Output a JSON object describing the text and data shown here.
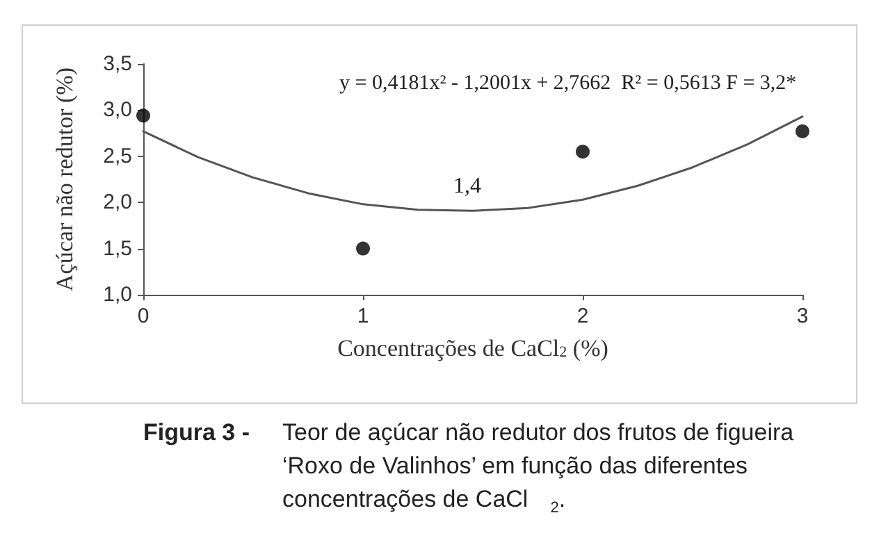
{
  "chart_data": {
    "type": "scatter",
    "xlabel": "Concentrações de CaCl$_{2}$ (%)",
    "ylabel": "Açúcar não redutor (%)",
    "annotations": [
      "y = 0,4181x² - 1,2001x + 2,7662  R² = 0,5613 F = 3,2*",
      "1,4",
      "Figura 3 -",
      "Teor de açúcar não redutor dos frutos de figueira ‘Roxo de Valinhos’ em função das diferentes concentrações de CaCl$_{2}$."
    ],
    "xlim": [
      0,
      3
    ],
    "xticks": [
      0,
      1,
      2,
      3
    ],
    "ylim": [
      1,
      3.5
    ],
    "yticks": [
      {
        "value": 1,
        "label": "1,0"
      },
      {
        "value": 1.5,
        "label": "1,5"
      },
      {
        "value": 2,
        "label": "2,0"
      },
      {
        "value": 2.5,
        "label": "2,5"
      },
      {
        "value": 3,
        "label": "3,0"
      },
      {
        "value": 3.5,
        "label": "3,5"
      }
    ],
    "grid": false,
    "marker": "circle",
    "series": [
      {
        "color": "#000000",
        "x": [
          0,
          1,
          2,
          3
        ],
        "values": [
          2.94,
          1.5,
          2.55,
          2.77
        ]
      },
      {
        "type": "line",
        "color": "#555555",
        "marker": "none",
        "line_style": "solid",
        "x": [
          0,
          0.25,
          0.5,
          0.75,
          1,
          1.25,
          1.5,
          1.75,
          2,
          2.25,
          2.5,
          2.75,
          3
        ],
        "values": [
          2.77,
          2.49,
          2.27,
          2.1,
          1.98,
          1.92,
          1.91,
          1.94,
          2.03,
          2.18,
          2.38,
          2.63,
          2.93
        ]
      }
    ]
  }
}
